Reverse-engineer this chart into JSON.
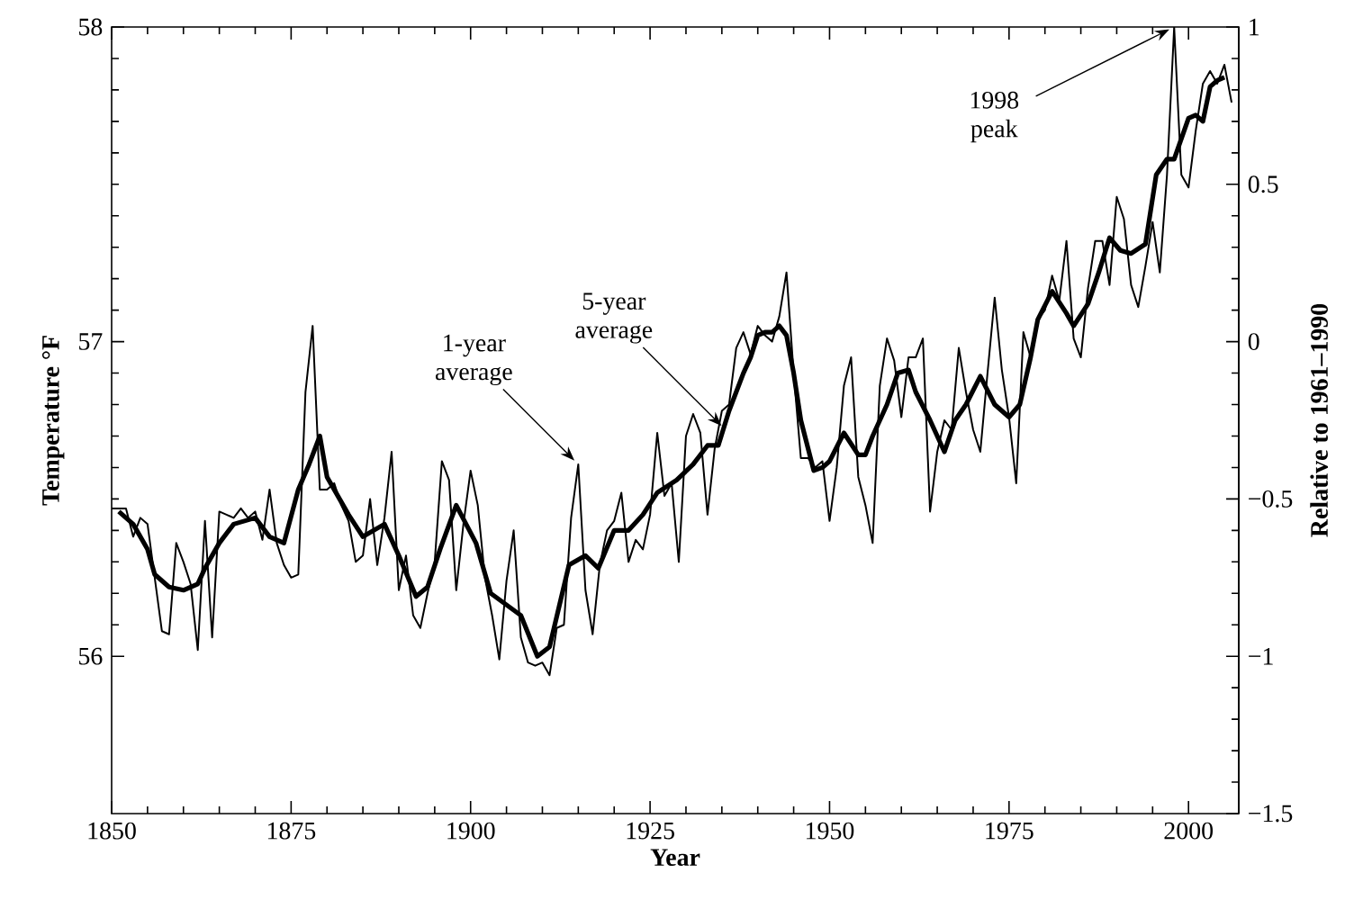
{
  "chart_data": {
    "type": "line",
    "xlabel": "Year",
    "ylabel": "Temperature °F",
    "y2label": "Relative to 1961–1990",
    "xlim": [
      1850,
      2007
    ],
    "xticks": [
      1850,
      1875,
      1900,
      1925,
      1950,
      1975,
      2000
    ],
    "ylim": [
      55.5,
      58
    ],
    "yticks": [
      56,
      57,
      58
    ],
    "y2lim": [
      -1.5,
      1
    ],
    "y2ticks": [
      {
        "value": -1.5,
        "label": "−1.5"
      },
      {
        "value": -1,
        "label": "−1"
      },
      {
        "value": -0.5,
        "label": "−0.5"
      },
      0,
      0.5,
      1
    ],
    "marker": "none",
    "line_style": "solid",
    "series": [
      {
        "color": "#000000",
        "x": [
          1850,
          1851,
          1852,
          1853,
          1854,
          1855,
          1856,
          1857,
          1858,
          1859,
          1860,
          1861,
          1862,
          1863,
          1864,
          1865,
          1866,
          1867,
          1868,
          1869,
          1870,
          1871,
          1872,
          1873,
          1874,
          1875,
          1876,
          1877,
          1878,
          1879,
          1880,
          1881,
          1882,
          1883,
          1884,
          1885,
          1886,
          1887,
          1888,
          1889,
          1890,
          1891,
          1892,
          1893,
          1894,
          1895,
          1896,
          1897,
          1898,
          1899,
          1900,
          1901,
          1902,
          1903,
          1904,
          1905,
          1906,
          1907,
          1908,
          1909,
          1910,
          1911,
          1912,
          1913,
          1914,
          1915,
          1916,
          1917,
          1918,
          1919,
          1920,
          1921,
          1922,
          1923,
          1924,
          1925,
          1926,
          1927,
          1928,
          1929,
          1930,
          1931,
          1932,
          1933,
          1934,
          1935,
          1936,
          1937,
          1938,
          1939,
          1940,
          1941,
          1942,
          1943,
          1944,
          1945,
          1946,
          1947,
          1948,
          1949,
          1950,
          1951,
          1952,
          1953,
          1954,
          1955,
          1956,
          1957,
          1958,
          1959,
          1960,
          1961,
          1962,
          1963,
          1964,
          1965,
          1966,
          1967,
          1968,
          1969,
          1970,
          1971,
          1972,
          1973,
          1974,
          1975,
          1976,
          1977,
          1978,
          1979,
          1980,
          1981,
          1982,
          1983,
          1984,
          1985,
          1986,
          1987,
          1988,
          1989,
          1990,
          1991,
          1992,
          1993,
          1994,
          1995,
          1996,
          1997,
          1998,
          1999,
          2000,
          2001,
          2002,
          2003,
          2004,
          2005,
          2006
        ],
        "values": [
          56.47,
          56.47,
          56.47,
          56.38,
          56.44,
          56.42,
          56.25,
          56.08,
          56.07,
          56.36,
          56.3,
          56.23,
          56.02,
          56.43,
          56.06,
          56.46,
          56.45,
          56.44,
          56.47,
          56.44,
          56.46,
          56.37,
          56.53,
          56.36,
          56.29,
          56.25,
          56.26,
          56.84,
          57.05,
          56.53,
          56.53,
          56.55,
          56.48,
          56.43,
          56.3,
          56.32,
          56.5,
          56.29,
          56.44,
          56.65,
          56.21,
          56.32,
          56.13,
          56.09,
          56.2,
          56.3,
          56.62,
          56.56,
          56.21,
          56.42,
          56.59,
          56.48,
          56.25,
          56.13,
          55.99,
          56.24,
          56.4,
          56.06,
          55.98,
          55.97,
          55.98,
          55.94,
          56.09,
          56.1,
          56.44,
          56.61,
          56.21,
          56.07,
          56.29,
          56.4,
          56.43,
          56.52,
          56.3,
          56.37,
          56.34,
          56.45,
          56.71,
          56.51,
          56.55,
          56.3,
          56.7,
          56.77,
          56.71,
          56.45,
          56.66,
          56.78,
          56.8,
          56.98,
          57.03,
          56.96,
          57.05,
          57.02,
          57.0,
          57.08,
          57.22,
          56.9,
          56.63,
          56.63,
          56.6,
          56.62,
          56.43,
          56.6,
          56.86,
          56.95,
          56.57,
          56.48,
          56.36,
          56.86,
          57.01,
          56.94,
          56.76,
          56.95,
          56.95,
          57.01,
          56.46,
          56.65,
          56.75,
          56.72,
          56.98,
          56.84,
          56.72,
          56.65,
          56.9,
          57.14,
          56.91,
          56.76,
          56.55,
          57.03,
          56.95,
          57.07,
          57.1,
          57.21,
          57.13,
          57.32,
          57.01,
          56.95,
          57.17,
          57.32,
          57.32,
          57.18,
          57.46,
          57.39,
          57.18,
          57.11,
          57.24,
          57.38,
          57.22,
          57.53,
          58.0,
          57.53,
          57.49,
          57.67,
          57.82,
          57.86,
          57.82,
          57.88,
          57.76
        ]
      },
      {
        "color": "#000000",
        "x": [
          1851,
          1853,
          1855,
          1856,
          1858,
          1860,
          1862,
          1863,
          1865,
          1867,
          1870,
          1872,
          1874,
          1876,
          1877.5,
          1879,
          1880,
          1883,
          1885,
          1888,
          1890,
          1892.4,
          1894,
          1895.75,
          1898,
          1900.75,
          1902.8,
          1907,
          1909.3,
          1911,
          1913.7,
          1916,
          1917.8,
          1920,
          1922,
          1924,
          1926,
          1928.7,
          1931,
          1933,
          1934.5,
          1936,
          1938,
          1939,
          1940,
          1941,
          1942,
          1943,
          1944,
          1945,
          1946,
          1947.8,
          1949,
          1950,
          1952,
          1954,
          1955,
          1956,
          1958,
          1959.5,
          1961,
          1962,
          1964,
          1966,
          1967.5,
          1969,
          1971,
          1973,
          1975,
          1976.5,
          1978,
          1979,
          1981,
          1983,
          1984,
          1986,
          1987.5,
          1989,
          1990.5,
          1992,
          1994,
          1995.5,
          1997,
          1998,
          2000,
          2001,
          2002,
          2003,
          2004,
          2005
        ],
        "values": [
          56.46,
          56.42,
          56.34,
          56.26,
          56.22,
          56.21,
          56.23,
          56.28,
          56.36,
          56.42,
          56.44,
          56.38,
          56.36,
          56.53,
          56.61,
          56.7,
          56.57,
          56.45,
          56.38,
          56.42,
          56.32,
          56.19,
          56.22,
          56.34,
          56.48,
          56.36,
          56.2,
          56.13,
          56.0,
          56.03,
          56.29,
          56.32,
          56.28,
          56.4,
          56.4,
          56.45,
          56.52,
          56.56,
          56.61,
          56.67,
          56.67,
          56.78,
          56.9,
          56.95,
          57.02,
          57.03,
          57.03,
          57.05,
          57.02,
          56.9,
          56.75,
          56.59,
          56.6,
          56.62,
          56.71,
          56.64,
          56.64,
          56.7,
          56.8,
          56.9,
          56.91,
          56.84,
          56.75,
          56.65,
          56.75,
          56.8,
          56.89,
          56.8,
          56.76,
          56.8,
          56.95,
          57.07,
          57.16,
          57.09,
          57.05,
          57.12,
          57.22,
          57.33,
          57.29,
          57.28,
          57.31,
          57.53,
          57.58,
          57.58,
          57.71,
          57.72,
          57.7,
          57.81,
          57.83,
          57.84
        ]
      }
    ],
    "annotations": [
      {
        "text": "1-year average",
        "x": 1915,
        "y": 56.61
      },
      {
        "text": "5-year average",
        "x": 1935.5,
        "y": 56.72
      },
      {
        "text": "1998 peak",
        "x": 1998,
        "y": 58.0
      }
    ]
  }
}
